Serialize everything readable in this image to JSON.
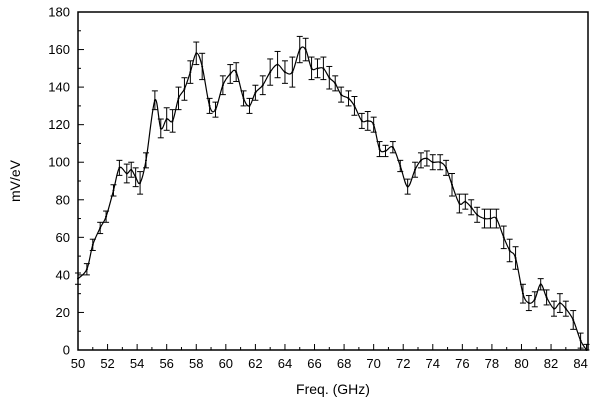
{
  "chart_data": {
    "type": "line",
    "title": "",
    "xlabel": "Freq. (GHz)",
    "ylabel": "mV/eV",
    "xlim": [
      50,
      84.5
    ],
    "ylim": [
      0,
      180
    ],
    "x_ticks": [
      "50",
      "52",
      "54",
      "56",
      "58",
      "60",
      "62",
      "64",
      "66",
      "68",
      "70",
      "72",
      "74",
      "76",
      "78",
      "80",
      "82",
      "84"
    ],
    "y_ticks": [
      "0",
      "20",
      "40",
      "60",
      "80",
      "100",
      "120",
      "140",
      "160",
      "180"
    ],
    "grid": false,
    "legend": "none",
    "line_color": "#000000",
    "series": [
      {
        "points": [
          [
            50.0,
            38,
            3
          ],
          [
            50.6,
            43,
            3
          ],
          [
            51.0,
            56,
            3
          ],
          [
            51.5,
            65,
            3
          ],
          [
            51.9,
            71,
            3
          ],
          [
            52.4,
            85,
            3
          ],
          [
            52.8,
            97,
            4
          ],
          [
            53.3,
            94,
            5
          ],
          [
            53.6,
            96,
            4
          ],
          [
            53.9,
            92,
            5
          ],
          [
            54.2,
            89,
            6
          ],
          [
            54.6,
            101,
            4
          ],
          [
            55.2,
            133,
            5
          ],
          [
            55.6,
            118,
            5
          ],
          [
            56.0,
            123,
            6
          ],
          [
            56.4,
            122,
            6
          ],
          [
            56.8,
            134,
            6
          ],
          [
            57.2,
            139,
            6
          ],
          [
            57.6,
            148,
            6
          ],
          [
            58.0,
            158,
            6
          ],
          [
            58.4,
            151,
            7
          ],
          [
            58.9,
            130,
            4
          ],
          [
            59.3,
            128,
            4
          ],
          [
            59.8,
            141,
            5
          ],
          [
            60.3,
            147,
            5
          ],
          [
            60.7,
            148,
            5
          ],
          [
            61.2,
            134,
            4
          ],
          [
            61.6,
            130,
            4
          ],
          [
            62.0,
            137,
            4
          ],
          [
            62.5,
            141,
            5
          ],
          [
            63.0,
            148,
            7
          ],
          [
            63.5,
            152,
            7
          ],
          [
            64.0,
            148,
            6
          ],
          [
            64.5,
            148,
            8
          ],
          [
            65.0,
            160,
            7
          ],
          [
            65.4,
            160,
            6
          ],
          [
            65.8,
            150,
            6
          ],
          [
            66.2,
            150,
            5
          ],
          [
            66.6,
            150,
            6
          ],
          [
            67.0,
            145,
            6
          ],
          [
            67.4,
            142,
            4
          ],
          [
            67.8,
            136,
            4
          ],
          [
            68.3,
            134,
            4
          ],
          [
            68.7,
            130,
            5
          ],
          [
            69.2,
            122,
            4
          ],
          [
            69.6,
            122,
            5
          ],
          [
            70.0,
            120,
            4
          ],
          [
            70.4,
            107,
            4
          ],
          [
            70.8,
            106,
            3
          ],
          [
            71.3,
            108,
            3
          ],
          [
            71.8,
            98,
            3
          ],
          [
            72.3,
            87,
            4
          ],
          [
            72.8,
            96,
            4
          ],
          [
            73.2,
            101,
            4
          ],
          [
            73.6,
            102,
            4
          ],
          [
            74.0,
            100,
            4
          ],
          [
            74.5,
            100,
            4
          ],
          [
            74.9,
            97,
            4
          ],
          [
            75.3,
            88,
            6
          ],
          [
            75.8,
            78,
            5
          ],
          [
            76.2,
            79,
            4
          ],
          [
            76.6,
            76,
            4
          ],
          [
            77.0,
            72,
            4
          ],
          [
            77.5,
            70,
            5
          ],
          [
            77.9,
            70,
            5
          ],
          [
            78.3,
            70,
            5
          ],
          [
            78.8,
            60,
            6
          ],
          [
            79.2,
            53,
            6
          ],
          [
            79.6,
            49,
            6
          ],
          [
            80.1,
            30,
            5
          ],
          [
            80.5,
            25,
            4
          ],
          [
            80.9,
            27,
            4
          ],
          [
            81.3,
            35,
            3
          ],
          [
            81.7,
            28,
            4
          ],
          [
            82.2,
            22,
            4
          ],
          [
            82.6,
            25,
            5
          ],
          [
            83.0,
            22,
            4
          ],
          [
            83.5,
            16,
            5
          ],
          [
            84.0,
            5,
            4
          ],
          [
            84.4,
            0,
            3
          ]
        ]
      }
    ]
  }
}
